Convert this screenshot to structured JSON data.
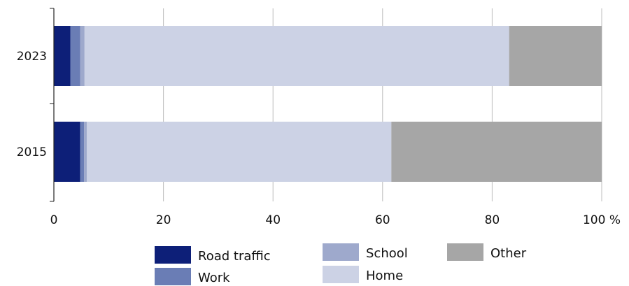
{
  "chart_data": {
    "type": "bar",
    "orientation": "horizontal",
    "stacked": true,
    "categories": [
      "2023",
      "2015"
    ],
    "series": [
      {
        "name": "Road traffic",
        "color": "#0d1f78",
        "values": [
          3.0,
          4.8
        ]
      },
      {
        "name": "Work",
        "color": "#6a7db5",
        "values": [
          1.8,
          0.7
        ]
      },
      {
        "name": "School",
        "color": "#9ea9cc",
        "values": [
          0.8,
          0.5
        ]
      },
      {
        "name": "Home",
        "color": "#ccd2e5",
        "values": [
          77.5,
          55.6
        ]
      },
      {
        "name": "Other",
        "color": "#a6a6a6",
        "values": [
          16.9,
          38.4
        ]
      }
    ],
    "x_ticks": [
      "0",
      "20",
      "40",
      "60",
      "80",
      "100 %"
    ],
    "xlim": [
      0,
      100
    ],
    "grid": true,
    "legend_position": "bottom"
  }
}
